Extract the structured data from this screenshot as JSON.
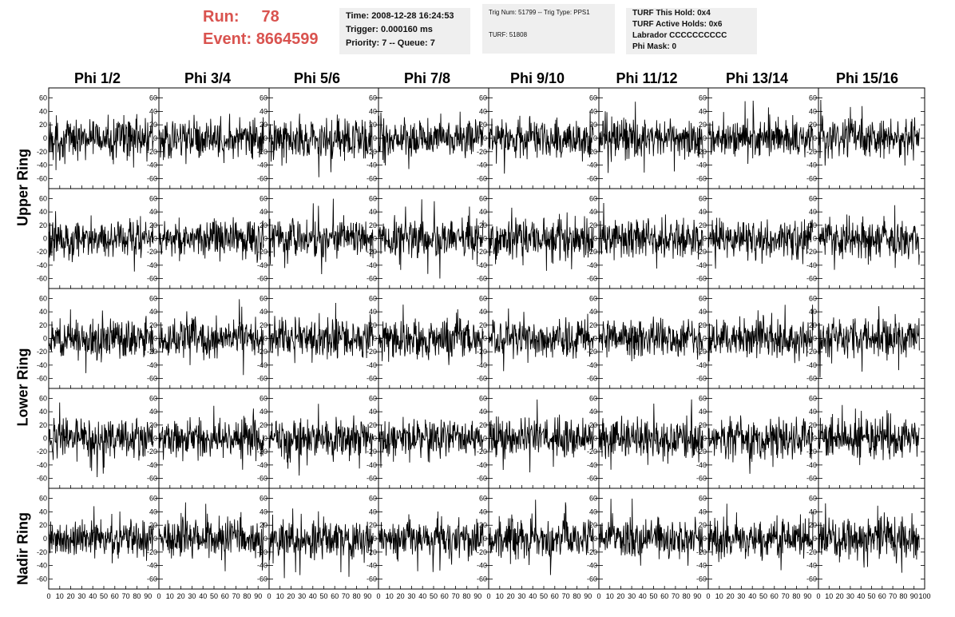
{
  "run_info": {
    "run_label": "Run:",
    "run_value": "78",
    "event_label": "Event:",
    "event_value": "8664599",
    "color": "#d9534f"
  },
  "time_box": {
    "line1": "Time: 2008-12-28 16:24:53",
    "line2": "Trigger: 0.000160 ms",
    "line3": "Priority: 7 -- Queue: 7"
  },
  "trig_box": {
    "line1": "Trig Num: 51799 -- Trig Type: PPS1",
    "line2": "TURF: 51808"
  },
  "turf_box": {
    "line1": "TURF This Hold: 0x4",
    "line2": "TURF Active Holds: 0x6",
    "line3": "Labrador CCCCCCCCCC",
    "line4": "Phi Mask: 0"
  },
  "columns": [
    "Phi 1/2",
    "Phi 3/4",
    "Phi 5/6",
    "Phi 7/8",
    "Phi 9/10",
    "Phi 11/12",
    "Phi 13/14",
    "Phi 15/16"
  ],
  "rows": [
    "Upper Ring",
    "Lower Ring",
    "Nadir Ring"
  ],
  "chart_data": {
    "type": "line",
    "layout": "grid of 5 rows x 8 columns of waveform panels",
    "xlim": [
      0,
      100
    ],
    "ylim": [
      -75,
      75
    ],
    "x_ticks": [
      "0",
      "10",
      "20",
      "30",
      "40",
      "50",
      "60",
      "70",
      "80",
      "90",
      "100"
    ],
    "y_ticks": [
      "60",
      "40",
      "20",
      "0",
      "-20",
      "-40",
      "-60"
    ],
    "grid": false,
    "line_color": "#000000",
    "samples_per_trace": 260,
    "trace_amplitude": 18,
    "notes": "Each panel shows a noise-like waveform of ~260 samples spanning x=0..~95, amplitudes mostly within -40..40 with occasional spikes to about -70."
  }
}
